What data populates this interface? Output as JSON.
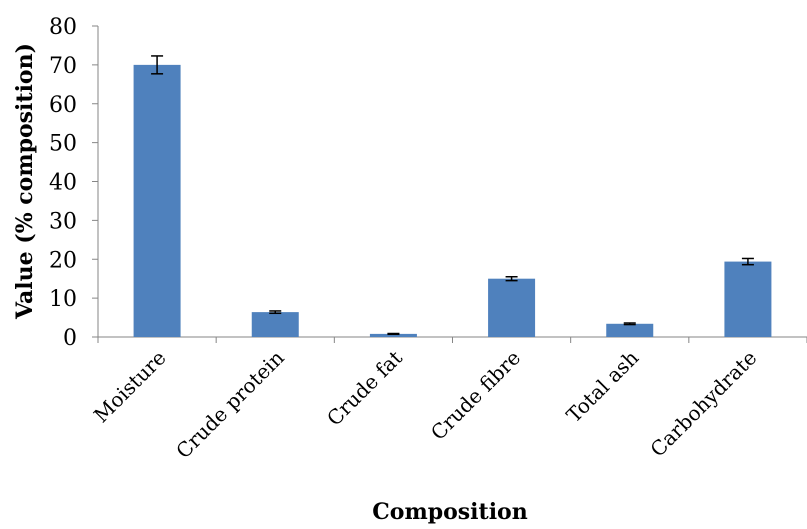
{
  "chart_data": {
    "type": "bar",
    "title": "",
    "xlabel": "Composition",
    "ylabel": "Value (% composition)",
    "categories": [
      "Moisture",
      "Crude protein",
      "Crude fat",
      "Crude fibre",
      "Total ash",
      "Carbohydrate"
    ],
    "values": [
      70.0,
      6.4,
      0.8,
      15.0,
      3.4,
      19.4
    ],
    "errors": [
      2.3,
      0.3,
      0.1,
      0.5,
      0.2,
      0.8
    ],
    "ylim": [
      0,
      80
    ],
    "yticks": [
      0,
      10,
      20,
      30,
      40,
      50,
      60,
      70,
      80
    ],
    "grid": false,
    "legend": "none",
    "bar_color": "#4F81BD"
  }
}
